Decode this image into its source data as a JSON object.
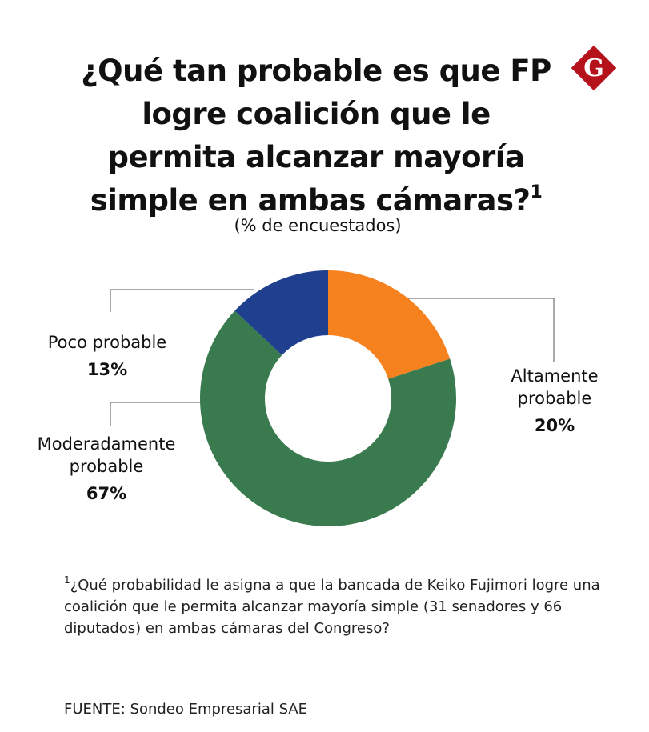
{
  "chart_data": {
    "type": "donut",
    "title": "¿Qué tan probable es que FP logre coalición que le permita alcanzar mayoría simple en ambas cámaras?",
    "title_note_marker": "1",
    "subtitle": "(% de encuestados)",
    "categories": [
      "Altamente probable",
      "Moderadamente probable",
      "Poco probable"
    ],
    "values": [
      20,
      67,
      13
    ],
    "value_labels": [
      "20%",
      "67%",
      "13%"
    ],
    "colors": [
      "#f5821f",
      "#3a7a4f",
      "#1f3f8f"
    ],
    "footnote_marker": "1",
    "footnote": "¿Qué probabilidad le asigna a que la bancada de Keiko Fujimori logre una coalición que le permita alcanzar mayoría simple (31 senadores y 66 diputados) en ambas cámaras del Congreso?",
    "source": "FUENTE: Sondeo Empresarial SAE",
    "logo": "G"
  }
}
